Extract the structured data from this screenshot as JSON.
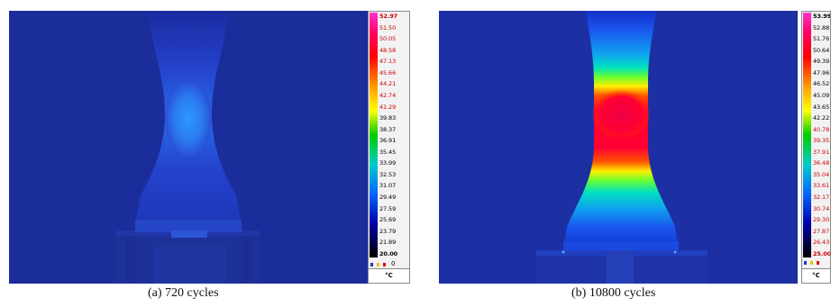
{
  "panels": [
    {
      "id": "a",
      "caption": "(a) 720 cycles",
      "unit": "°C",
      "icon_label": "0",
      "ticks": [
        "52.97",
        "51.50",
        "50.05",
        "48.58",
        "47.13",
        "45.66",
        "44.21",
        "42.74",
        "41.29",
        "39.83",
        "38.37",
        "36.91",
        "35.45",
        "33.99",
        "32.53",
        "31.07",
        "29.49",
        "27.59",
        "25.69",
        "23.79",
        "21.89",
        "20.00"
      ],
      "tick_colors": [
        "#cc0000",
        "#cc0000",
        "#cc0000",
        "#cc0000",
        "#cc0000",
        "#cc0000",
        "#cc0000",
        "#cc0000",
        "#cc0000",
        "#000000",
        "#000000",
        "#000000",
        "#000000",
        "#000000",
        "#000000",
        "#000000",
        "#000000",
        "#000000",
        "#000000",
        "#000000",
        "#000000",
        "#000000"
      ]
    },
    {
      "id": "b",
      "caption": "(b) 10800 cycles",
      "unit": "°C",
      "ticks": [
        "53.99",
        "52.88",
        "51.76",
        "50.64",
        "49.39",
        "47.96",
        "46.52",
        "45.09",
        "43.65",
        "42.22",
        "40.78",
        "39.35",
        "37.91",
        "36.48",
        "35.04",
        "33.61",
        "32.17",
        "30.74",
        "29.30",
        "27.87",
        "26.43",
        "25.00"
      ],
      "tick_colors": [
        "#000000",
        "#000000",
        "#000000",
        "#000000",
        "#000000",
        "#000000",
        "#000000",
        "#000000",
        "#000000",
        "#000000",
        "#cc0000",
        "#cc0000",
        "#cc0000",
        "#cc0000",
        "#cc0000",
        "#cc0000",
        "#cc0000",
        "#cc0000",
        "#cc0000",
        "#cc0000",
        "#cc0000",
        "#cc0000"
      ]
    }
  ],
  "colors": {
    "background_blue": "#1a2d9e",
    "background_blue_dark": "#13238a"
  }
}
